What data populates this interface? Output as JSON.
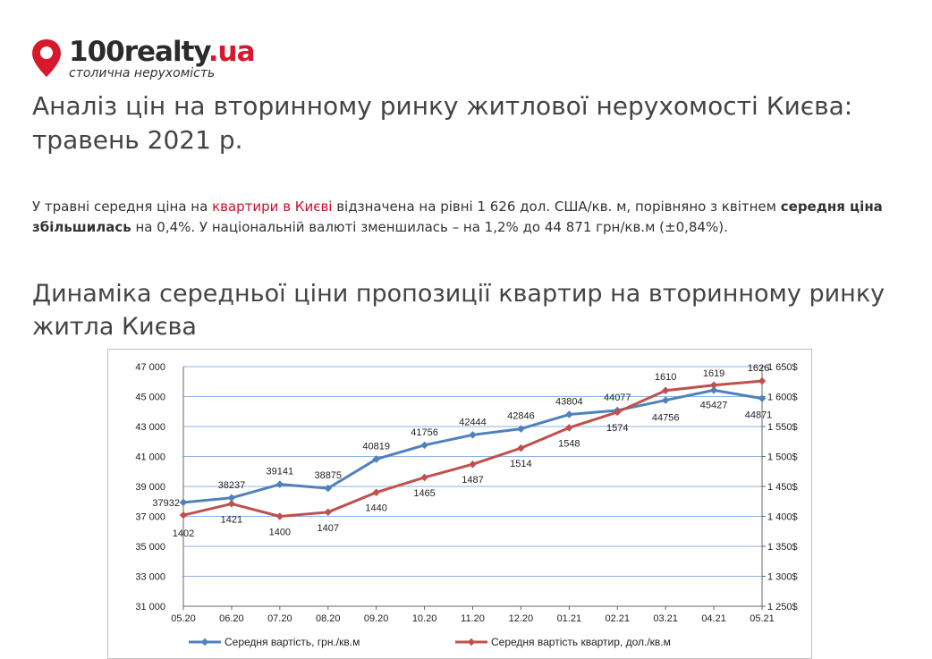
{
  "brand": {
    "name_main": "100realty",
    "name_accent": ".ua",
    "tagline": "столична нерухомість",
    "pin_color": "#d7192d"
  },
  "title": "Аналіз цін на вторинному ринку житлової нерухомості Києва: травень 2021 р.",
  "intro": {
    "part1": "У травні середня ціна на ",
    "link": "квартири в Києві",
    "part2": " відзначена на рівні 1 626 дол. США/кв. м, порівняно з квітнем ",
    "bold": "середня ціна збільшилась",
    "part3": " на 0,4%. У національній валюті зменшилась – на 1,2% до 44 871  грн/кв.м (±0,84%)."
  },
  "section_title": "Динаміка середньої ціни пропозиції квартир на вторинному ринку житла Києва",
  "chart_data": {
    "type": "line",
    "categories": [
      "05.20",
      "06.20",
      "07.20",
      "08.20",
      "09.20",
      "10.20",
      "11.20",
      "12.20",
      "01.21",
      "02.21",
      "03.21",
      "04.21",
      "05.21"
    ],
    "series": [
      {
        "name": "Середня вартість, грн./кв.м",
        "axis": "left",
        "color": "#4f81bd",
        "values": [
          37932,
          38237,
          39141,
          38875,
          40819,
          41756,
          42444,
          42846,
          43804,
          44077,
          44756,
          45427,
          44871
        ]
      },
      {
        "name": "Середня вартість квартир, дол./кв.м",
        "axis": "right",
        "color": "#c0504d",
        "values": [
          1402,
          1421,
          1400,
          1407,
          1440,
          1465,
          1487,
          1514,
          1548,
          1574,
          1610,
          1619,
          1626
        ]
      }
    ],
    "y_left": {
      "range": [
        31000,
        47000
      ],
      "ticks": [
        31000,
        33000,
        35000,
        37000,
        39000,
        41000,
        43000,
        45000,
        47000
      ],
      "tick_labels": [
        "31 000",
        "33 000",
        "35 000",
        "37 000",
        "39 000",
        "41 000",
        "43 000",
        "45 000",
        "47 000"
      ]
    },
    "y_right": {
      "range": [
        1250,
        1650
      ],
      "ticks": [
        1250,
        1300,
        1350,
        1400,
        1450,
        1500,
        1550,
        1600,
        1650
      ],
      "tick_labels": [
        "1 250$",
        "1 300$",
        "1 350$",
        "1 400$",
        "1 450$",
        "1 500$",
        "1 550$",
        "1 600$",
        "1 650$"
      ]
    },
    "grid": true,
    "legend_position": "bottom"
  }
}
